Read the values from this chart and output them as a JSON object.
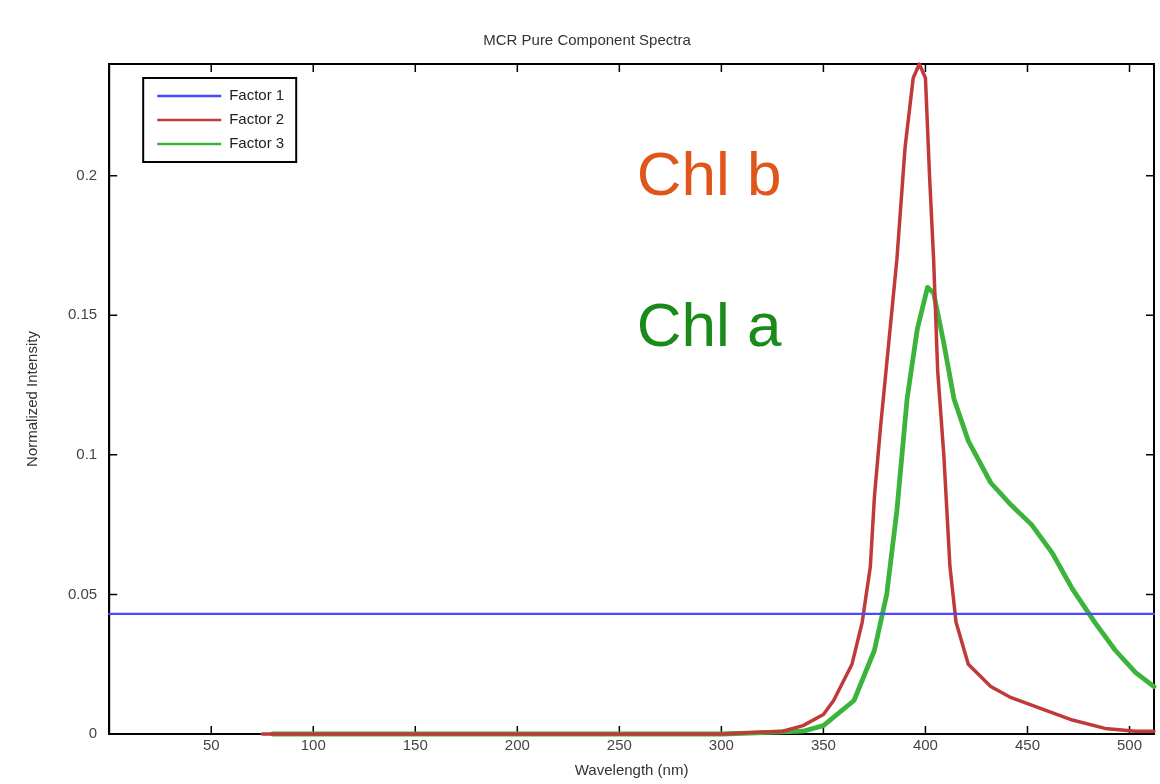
{
  "chart_data": {
    "type": "line",
    "title": "MCR Pure Component Spectra",
    "xlabel": "Wavelength (nm)",
    "ylabel": "Normalized Intensity",
    "xlim": [
      0,
      512
    ],
    "xticks": [
      50,
      100,
      150,
      200,
      250,
      300,
      350,
      400,
      450,
      500
    ],
    "ylim": [
      0,
      0.24
    ],
    "yticks": [
      0,
      0.05,
      0.1,
      0.15,
      0.2
    ],
    "grid": false,
    "legend": "top left",
    "marker": "none",
    "line_style": "solid",
    "annotations": [
      "Chl b",
      "Chl a"
    ],
    "series": [
      {
        "name": "Factor 1",
        "color": "#4a4aff",
        "x": [
          0,
          512
        ],
        "values": [
          0.043,
          0.043
        ]
      },
      {
        "name": "Factor 2",
        "color": "#c03a3a",
        "x": [
          75,
          100,
          150,
          200,
          250,
          300,
          330,
          340,
          350,
          355,
          364,
          369,
          373,
          375,
          378,
          382,
          386,
          390,
          394,
          397,
          400,
          402,
          404,
          406,
          409,
          412,
          415,
          421,
          432,
          442,
          457,
          472,
          488,
          503,
          512
        ],
        "values": [
          0,
          0,
          0,
          0,
          0,
          0,
          0.001,
          0.003,
          0.007,
          0.012,
          0.025,
          0.04,
          0.06,
          0.085,
          0.11,
          0.14,
          0.17,
          0.21,
          0.235,
          0.24,
          0.235,
          0.2,
          0.17,
          0.13,
          0.1,
          0.06,
          0.04,
          0.025,
          0.017,
          0.013,
          0.009,
          0.005,
          0.002,
          0.001,
          0.001
        ]
      },
      {
        "name": "Factor 3",
        "color": "#3cb43c",
        "x": [
          80,
          100,
          150,
          200,
          250,
          300,
          340,
          350,
          365,
          375,
          381,
          386,
          391,
          396,
          401,
          404,
          409,
          414,
          421,
          432,
          442,
          452,
          462,
          472,
          483,
          493,
          503,
          512
        ],
        "values": [
          0,
          0,
          0,
          0,
          0,
          0,
          0.001,
          0.003,
          0.012,
          0.03,
          0.05,
          0.08,
          0.12,
          0.145,
          0.16,
          0.158,
          0.14,
          0.12,
          0.105,
          0.09,
          0.082,
          0.075,
          0.065,
          0.052,
          0.04,
          0.03,
          0.022,
          0.017
        ]
      }
    ]
  }
}
